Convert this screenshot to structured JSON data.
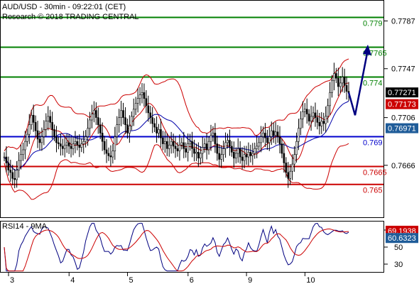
{
  "header": {
    "line1": "AUD/USD - 30min - 09:22:01 (CET)",
    "line2": "Research © 2018 TRADING CENTRAL"
  },
  "colors": {
    "resistance": "#008000",
    "support": "#cc0000",
    "pivot": "#0000cc",
    "candle": "#000000",
    "bollinger": "#cc0000",
    "moving_average": "#0000aa",
    "forecast_arrow": "#000080",
    "rsi_line": "#000080",
    "rsi_ma": "#cc0000",
    "last_price_tag": "#000000",
    "ma_tag": "#cc0000",
    "ma2_tag": "#1f5c99"
  },
  "chart_data": {
    "type": "candlestick",
    "instrument": "AUD/USD",
    "timeframe": "30min",
    "x_tick_labels": [
      "3",
      "4",
      "5",
      "6",
      "9",
      "10"
    ],
    "y_axis": {
      "ticks": [
        "0.7787",
        "0.7747",
        "0.7706",
        "0.7666"
      ],
      "ylim": [
        0.7627,
        0.78
      ]
    },
    "price_tags": {
      "last": "0.77271",
      "ma_upper": "0.77173",
      "ma_lower": "0.76971"
    },
    "levels": [
      {
        "label": "0.779",
        "value": 0.779,
        "kind": "resistance"
      },
      {
        "label": "0.7765",
        "value": 0.7765,
        "kind": "resistance"
      },
      {
        "label": "0.774",
        "value": 0.774,
        "kind": "resistance"
      },
      {
        "label": "0.769",
        "value": 0.769,
        "kind": "pivot"
      },
      {
        "label": "0.7665",
        "value": 0.7665,
        "kind": "support"
      },
      {
        "label": "0.765",
        "value": 0.765,
        "kind": "support"
      }
    ],
    "closes": [
      0.7673,
      0.7668,
      0.7662,
      0.766,
      0.7655,
      0.7654,
      0.7662,
      0.767,
      0.7675,
      0.7679,
      0.7686,
      0.7692,
      0.77,
      0.7708,
      0.7702,
      0.7695,
      0.7688,
      0.7685,
      0.769,
      0.7696,
      0.7703,
      0.7707,
      0.7702,
      0.7696,
      0.769,
      0.7685,
      0.7684,
      0.7682,
      0.768,
      0.7683,
      0.7685,
      0.7682,
      0.768,
      0.7684,
      0.7686,
      0.7683,
      0.7681,
      0.7684,
      0.7686,
      0.769,
      0.7697,
      0.7704,
      0.7709,
      0.7712,
      0.7706,
      0.77,
      0.7693,
      0.7686,
      0.7679,
      0.7676,
      0.7674,
      0.7673,
      0.7678,
      0.769,
      0.77,
      0.7706,
      0.7712,
      0.7706,
      0.77,
      0.7693,
      0.7699,
      0.7707,
      0.7713,
      0.7718,
      0.7722,
      0.7725,
      0.7727,
      0.7722,
      0.7716,
      0.771,
      0.7706,
      0.7701,
      0.7698,
      0.7693,
      0.7696,
      0.7689,
      0.7684,
      0.7686,
      0.768,
      0.7683,
      0.7686,
      0.7682,
      0.768,
      0.7678,
      0.7683,
      0.7685,
      0.768,
      0.7677,
      0.7684,
      0.7686,
      0.768,
      0.7676,
      0.7677,
      0.7672,
      0.7676,
      0.7681,
      0.7684,
      0.7679,
      0.7686,
      0.7691,
      0.7693,
      0.7684,
      0.7676,
      0.7671,
      0.7675,
      0.768,
      0.7685,
      0.7687,
      0.7682,
      0.7677,
      0.7672,
      0.7676,
      0.768,
      0.7673,
      0.767,
      0.7675,
      0.7673,
      0.7677,
      0.7674,
      0.7676,
      0.768,
      0.7682,
      0.7685,
      0.769,
      0.7693,
      0.7689,
      0.7685,
      0.769,
      0.7695,
      0.7691,
      0.7694,
      0.769,
      0.7684,
      0.7676,
      0.7668,
      0.766,
      0.7655,
      0.7661,
      0.7667,
      0.7675,
      0.7686,
      0.7697,
      0.7705,
      0.7711,
      0.7713,
      0.7709,
      0.7703,
      0.7707,
      0.771,
      0.7706,
      0.7702,
      0.7699,
      0.7703,
      0.7701,
      0.7707,
      0.7716,
      0.7727,
      0.7737,
      0.7743,
      0.7739,
      0.7732,
      0.7735,
      0.774,
      0.7733,
      0.7728,
      0.7727
    ],
    "forecast_path": [
      0.7727,
      0.7708,
      0.776
    ],
    "rsi": {
      "label": "RSI14 - 9MA",
      "values": [
        "69.1938",
        "60.6323"
      ],
      "y_ticks": [
        "70",
        "50",
        "30"
      ],
      "ylim": [
        20,
        80
      ]
    }
  }
}
